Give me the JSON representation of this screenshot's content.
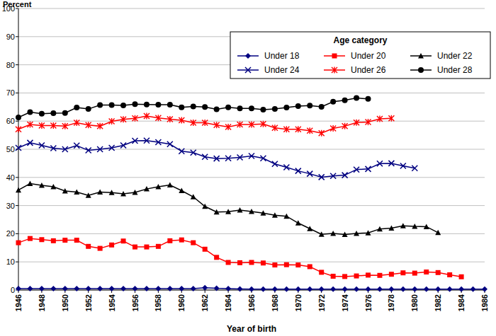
{
  "chart_data": {
    "type": "line",
    "y_label": "Percent",
    "x_label": "Year of birth",
    "legend_title": "Age category",
    "legend": "upper right",
    "grid": true,
    "x": [
      1946,
      1947,
      1948,
      1949,
      1950,
      1951,
      1952,
      1953,
      1954,
      1955,
      1956,
      1957,
      1958,
      1959,
      1960,
      1961,
      1962,
      1963,
      1964,
      1965,
      1966,
      1967,
      1968,
      1969,
      1970,
      1971,
      1972,
      1973,
      1974,
      1975,
      1976,
      1977,
      1978,
      1979,
      1980,
      1981,
      1982,
      1983,
      1984,
      1985,
      1986
    ],
    "xlim": [
      1946,
      1986
    ],
    "xticks": [
      1946,
      1948,
      1950,
      1952,
      1954,
      1956,
      1958,
      1960,
      1962,
      1964,
      1966,
      1968,
      1970,
      1972,
      1974,
      1976,
      1978,
      1980,
      1982,
      1984,
      1986
    ],
    "ylim": [
      0,
      100
    ],
    "yticks": [
      0,
      10,
      20,
      30,
      40,
      50,
      60,
      70,
      80,
      90,
      100
    ],
    "series": [
      {
        "name": "Under 18",
        "color": "#000080",
        "marker": "diamond",
        "values": [
          0.5,
          0.5,
          0.5,
          0.5,
          0.5,
          0.5,
          0.5,
          0.5,
          0.5,
          0.5,
          0.5,
          0.5,
          0.5,
          0.5,
          0.5,
          0.5,
          0.8,
          0.6,
          0.5,
          0.4,
          0.3,
          0.3,
          0.3,
          0.3,
          0.3,
          0.3,
          0.3,
          0.3,
          0.3,
          0.3,
          0.3,
          0.3,
          0.3,
          0.3,
          0.3,
          0.3,
          0.3,
          0.3,
          0.3,
          0.3,
          0.3
        ]
      },
      {
        "name": "Under 20",
        "color": "#ff0000",
        "marker": "square",
        "values": [
          16.8,
          18.3,
          17.9,
          17.5,
          17.7,
          17.7,
          15.5,
          14.8,
          16.0,
          17.4,
          15.3,
          15.3,
          15.5,
          17.5,
          17.8,
          16.8,
          14.5,
          11.6,
          9.8,
          9.7,
          9.8,
          9.6,
          8.9,
          9.0,
          8.9,
          8.3,
          6.3,
          4.9,
          4.8,
          5.0,
          5.3,
          5.2,
          5.6,
          6.1,
          6.0,
          6.4,
          6.2,
          5.4,
          4.7,
          null,
          null
        ]
      },
      {
        "name": "Under 22",
        "color": "#000000",
        "marker": "triangle",
        "values": [
          35.5,
          37.8,
          37.2,
          36.7,
          35.2,
          34.8,
          33.6,
          34.8,
          34.6,
          34.2,
          34.7,
          35.9,
          36.7,
          37.3,
          35.3,
          33.1,
          29.7,
          27.7,
          27.8,
          28.4,
          27.9,
          27.3,
          26.6,
          26.2,
          23.8,
          21.8,
          19.8,
          20.1,
          19.7,
          20.1,
          20.3,
          21.7,
          22.0,
          22.8,
          22.6,
          22.5,
          20.4,
          null,
          null,
          null,
          null
        ]
      },
      {
        "name": "Under 24",
        "color": "#000080",
        "marker": "x",
        "values": [
          50.5,
          52.3,
          51.4,
          50.4,
          50.0,
          51.3,
          49.6,
          50.0,
          50.5,
          51.4,
          53.0,
          53.1,
          52.5,
          51.8,
          49.3,
          48.8,
          47.3,
          46.7,
          46.8,
          47.1,
          47.6,
          46.8,
          44.8,
          43.6,
          42.3,
          41.3,
          40.1,
          40.5,
          40.8,
          42.8,
          43.0,
          44.9,
          45.0,
          44.1,
          43.3,
          null,
          null,
          null,
          null,
          null,
          null
        ]
      },
      {
        "name": "Under 26",
        "color": "#ff0000",
        "marker": "star",
        "values": [
          57.1,
          58.8,
          58.4,
          58.4,
          58.2,
          59.4,
          58.6,
          58.2,
          59.9,
          60.6,
          61.0,
          61.8,
          61.1,
          60.7,
          60.3,
          59.4,
          59.4,
          58.6,
          57.9,
          58.8,
          58.8,
          59.0,
          57.6,
          57.1,
          57.1,
          56.6,
          55.7,
          57.4,
          58.2,
          59.5,
          59.7,
          60.8,
          61.0,
          null,
          null,
          null,
          null,
          null,
          null,
          null,
          null
        ]
      },
      {
        "name": "Under 28",
        "color": "#000000",
        "marker": "circle",
        "values": [
          61.3,
          63.2,
          62.6,
          62.8,
          62.9,
          64.8,
          64.3,
          65.7,
          65.7,
          65.6,
          66.0,
          65.9,
          65.8,
          65.8,
          64.9,
          65.2,
          65.0,
          64.2,
          64.9,
          64.5,
          64.5,
          64.1,
          64.3,
          64.8,
          65.3,
          65.5,
          65.1,
          66.9,
          67.4,
          68.2,
          67.9,
          null,
          null,
          null,
          null,
          null,
          null,
          null,
          null,
          null,
          null
        ]
      }
    ]
  }
}
